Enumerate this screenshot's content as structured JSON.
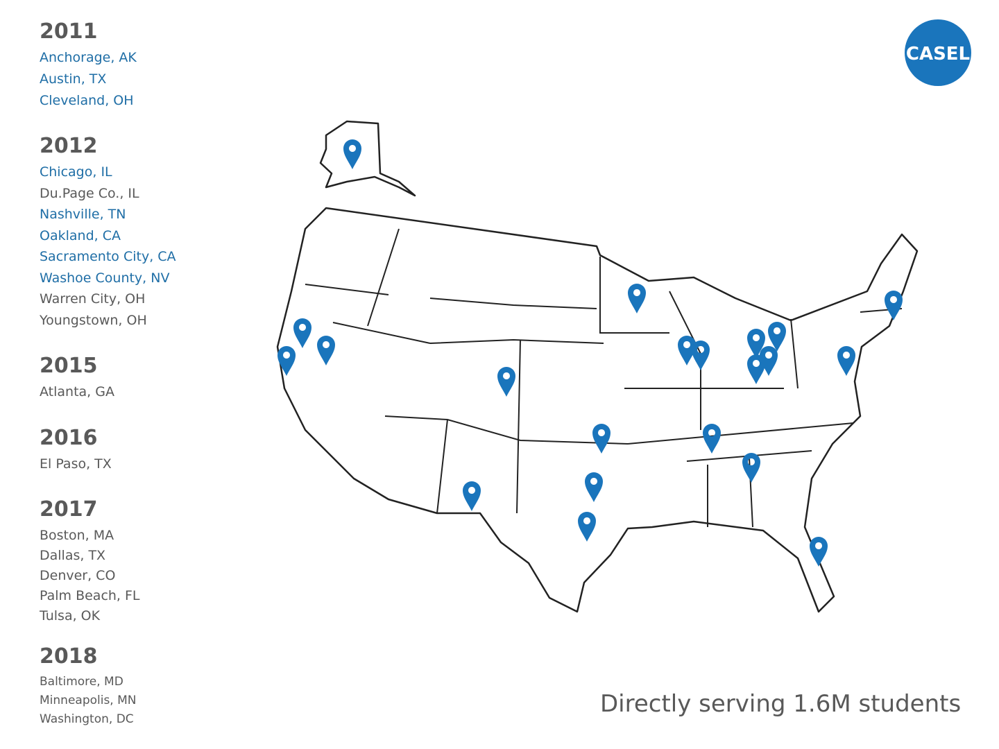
{
  "logo": "CASEL",
  "tagline": "Directly serving 1.6M students",
  "groups": [
    {
      "year": "2011",
      "cities": [
        {
          "name": "Anchorage, AK",
          "color": "#1f6ea6"
        },
        {
          "name": "Austin, TX",
          "color": "#1f6ea6"
        },
        {
          "name": "Cleveland, OH",
          "color": "#1f6ea6"
        }
      ]
    },
    {
      "year": "2012",
      "cities": [
        {
          "name": "Chicago, IL",
          "color": "#1f6ea6"
        },
        {
          "name": "Du.Page Co., IL",
          "color": "#595959"
        },
        {
          "name": "Nashville, TN",
          "color": "#1f6ea6"
        },
        {
          "name": "Oakland, CA",
          "color": "#1f6ea6"
        },
        {
          "name": "Sacramento City, CA",
          "color": "#1f6ea6"
        },
        {
          "name": "Washoe County, NV",
          "color": "#1f6ea6"
        },
        {
          "name": "Warren City, OH",
          "color": "#595959"
        },
        {
          "name": "Youngstown, OH",
          "color": "#595959"
        }
      ]
    },
    {
      "year": "2015",
      "cities": [
        {
          "name": "Atlanta, GA",
          "color": "#595959"
        }
      ]
    },
    {
      "year": "2016",
      "cities": [
        {
          "name": "El Paso, TX",
          "color": "#595959"
        }
      ]
    },
    {
      "year": "2017",
      "cities": [
        {
          "name": "Boston, MA",
          "color": "#595959"
        },
        {
          "name": "Dallas, TX",
          "color": "#595959"
        },
        {
          "name": "Denver, CO",
          "color": "#595959"
        },
        {
          "name": "Palm Beach, FL",
          "color": "#595959"
        },
        {
          "name": "Tulsa, OK",
          "color": "#595959"
        }
      ]
    },
    {
      "year": "2018",
      "cities": [
        {
          "name": "Baltimore, MD",
          "color": "#595959"
        },
        {
          "name": "Minneapolis, MN",
          "color": "#595959"
        },
        {
          "name": "Washington, DC",
          "color": "#595959"
        }
      ]
    }
  ]
}
